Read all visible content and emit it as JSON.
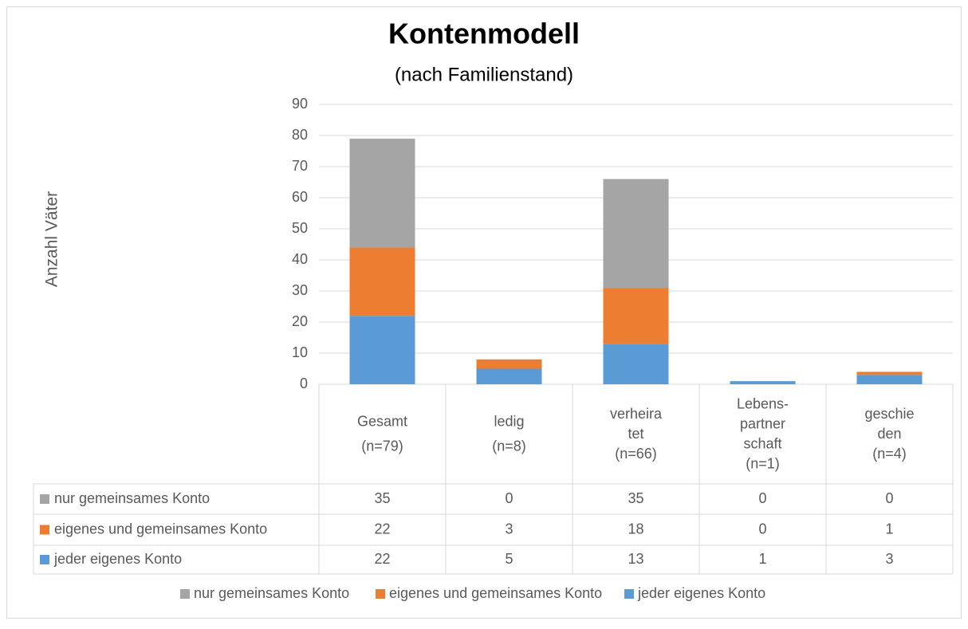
{
  "chart_data": {
    "type": "stacked_bar",
    "title": "Kontenmodell",
    "subtitle": "(nach Familienstand)",
    "ylabel": "Anzahl Väter",
    "categories": [
      [
        "Gesamt",
        "(n=79)"
      ],
      [
        "ledig",
        "(n=8)"
      ],
      [
        "verheira",
        "tet",
        "(n=66)"
      ],
      [
        "Lebens-",
        "partner",
        "schaft",
        "(n=1)"
      ],
      [
        "geschie",
        "den",
        "(n=4)"
      ]
    ],
    "series": [
      {
        "name": "nur gemeinsames Konto",
        "color": "#a5a5a5",
        "values": [
          35,
          0,
          35,
          0,
          0
        ]
      },
      {
        "name": "eigenes und gemeinsames Konto",
        "color": "#ed7d31",
        "values": [
          22,
          3,
          18,
          0,
          1
        ]
      },
      {
        "name": "jeder eigenes Konto",
        "color": "#5b9bd5",
        "values": [
          22,
          5,
          13,
          1,
          3
        ]
      }
    ],
    "ylim": [
      0,
      90
    ],
    "yticks": [
      0,
      10,
      20,
      30,
      40,
      50,
      60,
      70,
      80,
      90
    ],
    "grid": true,
    "legend": "bottom",
    "data_table": true
  }
}
